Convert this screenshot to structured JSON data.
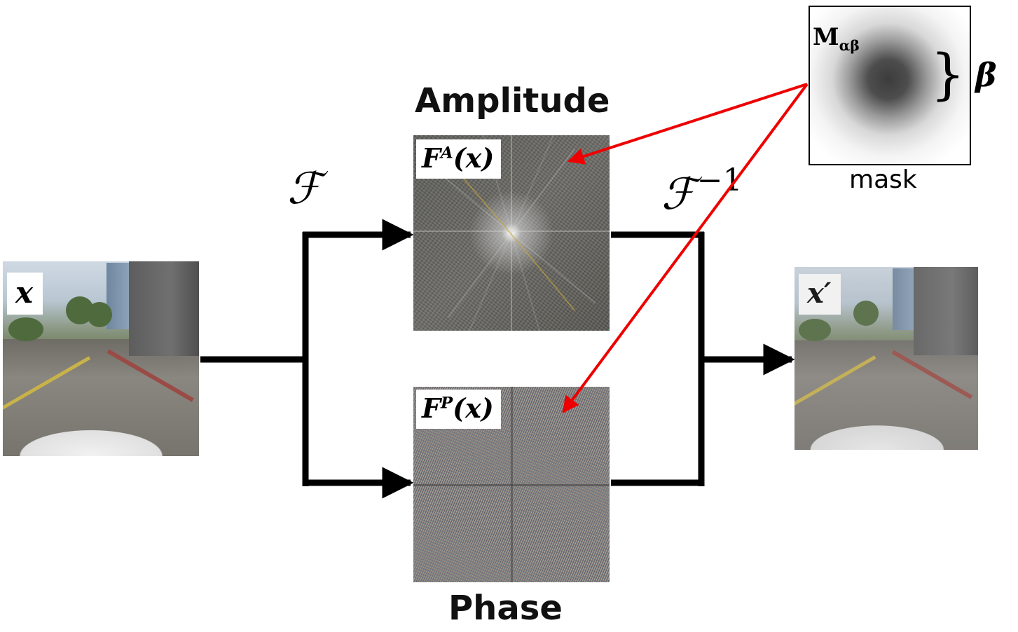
{
  "input_label": "x",
  "output_label": "x′",
  "amplitude": {
    "title": "Amplitude",
    "label_base": "F",
    "label_sup": "A",
    "label_arg": "(x)"
  },
  "phase": {
    "title": "Phase",
    "label_base": "F",
    "label_sup": "P",
    "label_arg": "(x)"
  },
  "fourier_op": "ℱ",
  "inverse_op": "ℱ",
  "inverse_sup": "−1",
  "mask": {
    "label_base": "M",
    "label_sub": "αβ",
    "caption": "mask",
    "beta_label": "β",
    "brace": "}"
  },
  "colors": {
    "flow": "#000000",
    "mask_arrow": "#ee0000"
  }
}
